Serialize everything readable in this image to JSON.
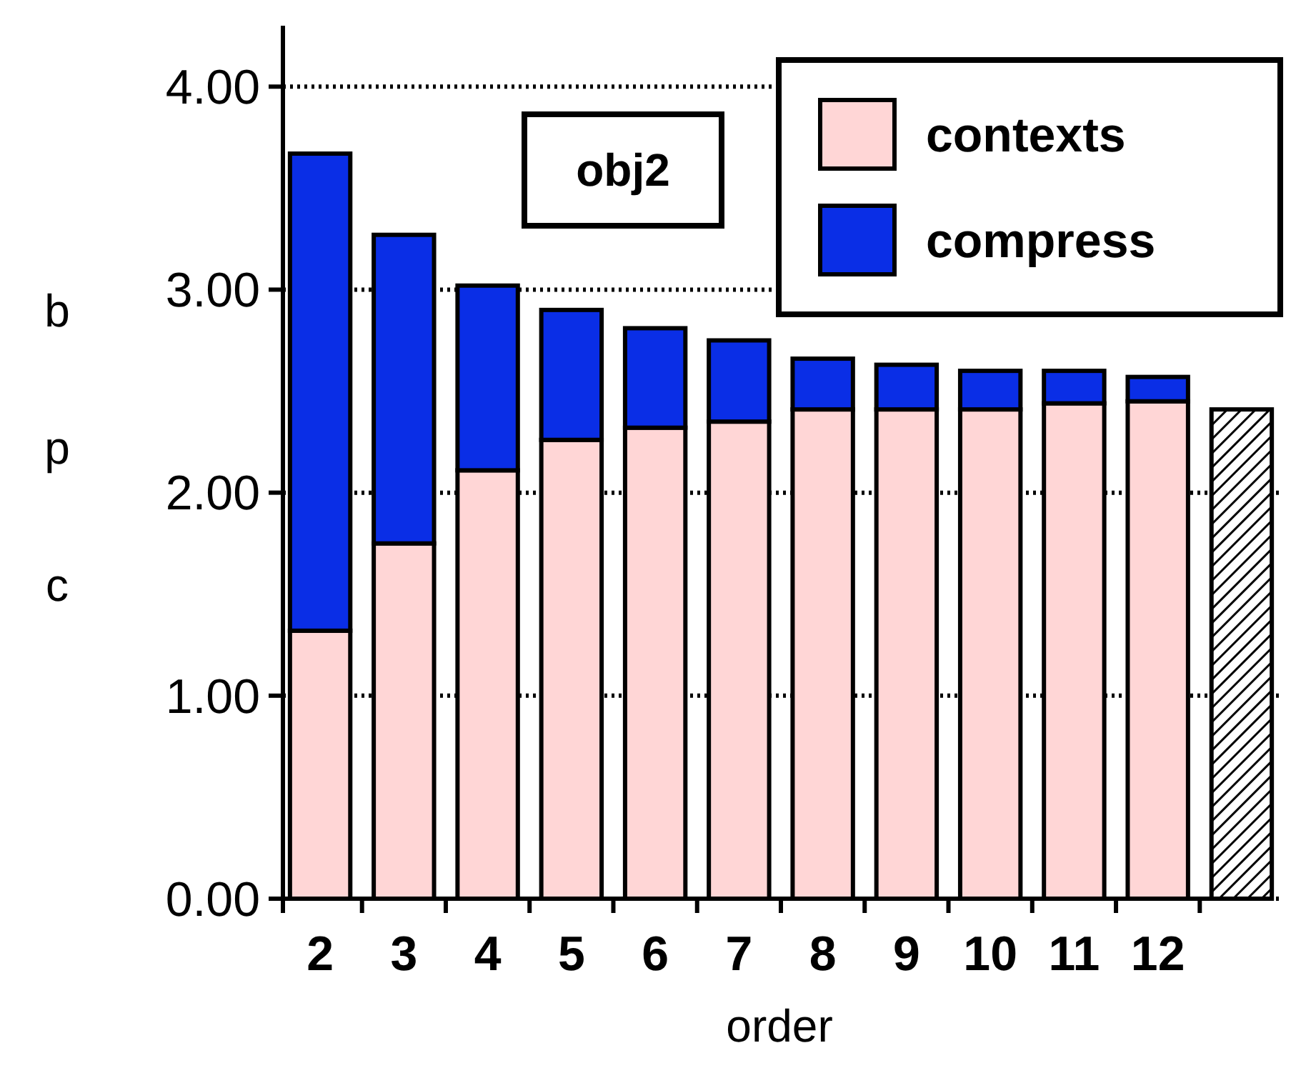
{
  "chart_data": {
    "type": "bar",
    "title": "obj2",
    "xlabel": "order",
    "ylabel": "bpc",
    "stacked": true,
    "categories": [
      "2",
      "3",
      "4",
      "5",
      "6",
      "7",
      "8",
      "9",
      "10",
      "11",
      "12",
      null
    ],
    "series": [
      {
        "name": "contexts",
        "color": "#ffd6d6",
        "values": [
          1.32,
          1.75,
          2.11,
          2.26,
          2.32,
          2.35,
          2.41,
          2.41,
          2.41,
          2.44,
          2.45,
          null
        ]
      },
      {
        "name": "compress",
        "color": "#0a2ee6",
        "values": [
          2.35,
          1.52,
          0.91,
          0.64,
          0.49,
          0.4,
          0.25,
          0.22,
          0.19,
          0.16,
          0.12,
          null
        ]
      },
      {
        "color": "#000000",
        "values": [
          null,
          null,
          null,
          null,
          null,
          null,
          null,
          null,
          null,
          null,
          null,
          2.41
        ]
      }
    ],
    "ylim": [
      0,
      4.3
    ],
    "yticks": [
      {
        "value": 0,
        "label": "0.00"
      },
      {
        "value": 1,
        "label": "1.00"
      },
      {
        "value": 2,
        "label": "2.00"
      },
      {
        "value": 3,
        "label": "3.00"
      },
      {
        "value": 4,
        "label": "4.00"
      }
    ],
    "grid": "y",
    "legend": "top right"
  }
}
